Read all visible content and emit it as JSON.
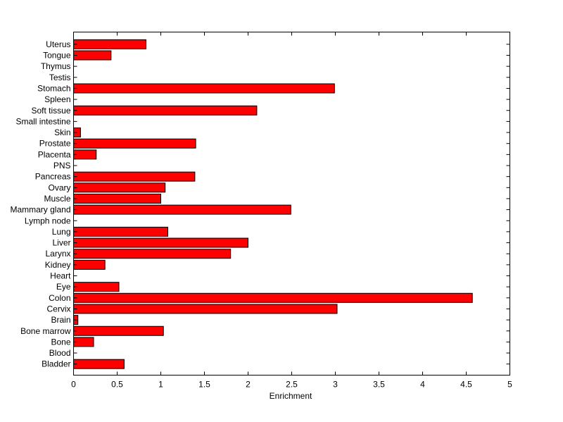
{
  "chart_data": {
    "type": "bar",
    "orientation": "horizontal",
    "title": "",
    "xlabel": "Enrichment",
    "ylabel": "",
    "xlim": [
      0,
      5
    ],
    "x_ticks": [
      "0",
      "0.5",
      "1",
      "1.5",
      "2",
      "2.5",
      "3",
      "3.5",
      "4",
      "4.5",
      "5"
    ],
    "grid": false,
    "bar_color": "#ff0000",
    "categories": [
      "Bladder",
      "Blood",
      "Bone",
      "Bone marrow",
      "Brain",
      "Cervix",
      "Colon",
      "Eye",
      "Heart",
      "Kidney",
      "Larynx",
      "Liver",
      "Lung",
      "Lymph node",
      "Mammary gland",
      "Muscle",
      "Ovary",
      "Pancreas",
      "PNS",
      "Placenta",
      "Prostate",
      "Skin",
      "Small intestine",
      "Soft tissue",
      "Spleen",
      "Stomach",
      "Testis",
      "Thymus",
      "Tongue",
      "Uterus"
    ],
    "values": [
      0.58,
      0,
      0.23,
      1.03,
      0.05,
      3.02,
      4.57,
      0.52,
      0,
      0.36,
      1.8,
      2.0,
      1.08,
      0,
      2.49,
      1.0,
      1.05,
      1.39,
      0,
      0.26,
      1.4,
      0.08,
      0,
      2.1,
      0,
      2.99,
      0,
      0,
      0.43,
      0.83
    ]
  }
}
